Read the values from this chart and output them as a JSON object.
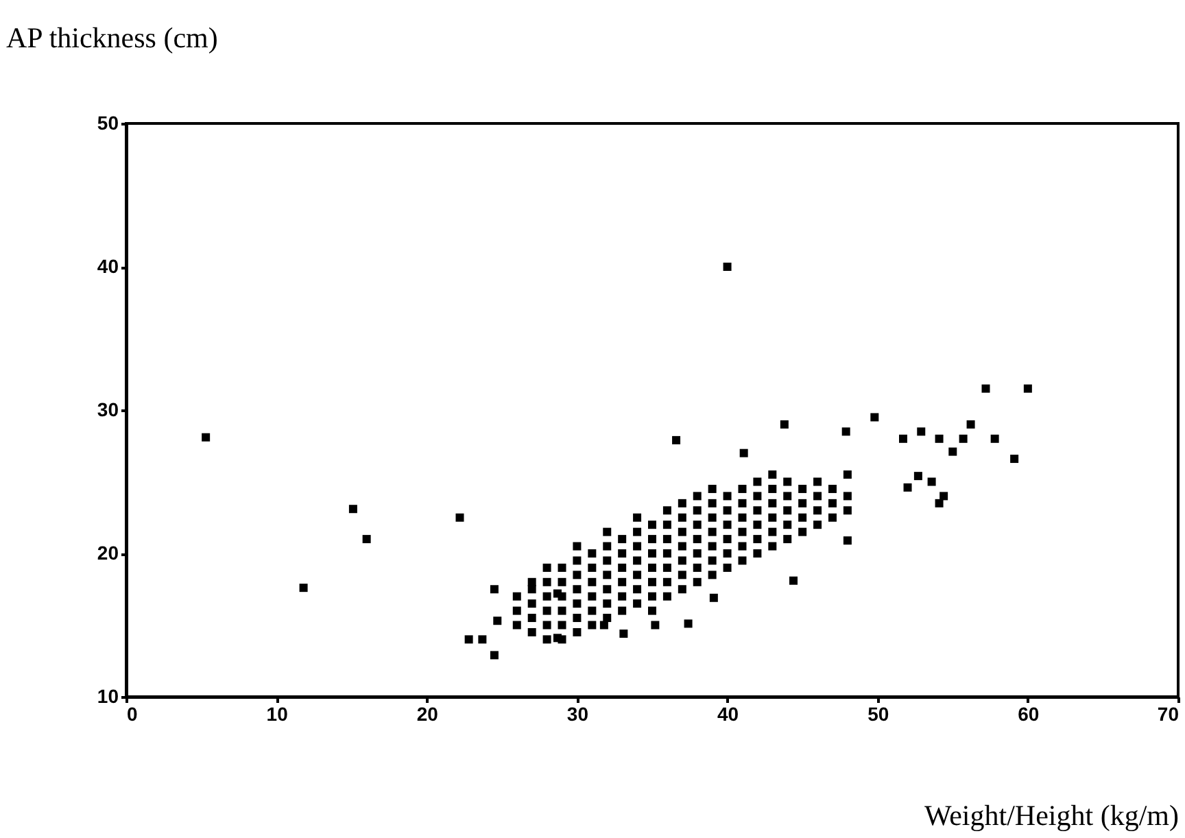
{
  "chart_data": {
    "type": "scatter",
    "xlabel": "Weight/Height (kg/m)",
    "ylabel": "AP thickness (cm)",
    "xlim": [
      0,
      70
    ],
    "ylim": [
      10,
      50
    ],
    "xticks": [
      0,
      10,
      20,
      30,
      40,
      50,
      60,
      70
    ],
    "yticks": [
      10,
      20,
      30,
      40,
      50
    ],
    "marker": "square",
    "color": "#000000",
    "x": [
      5.3,
      11.8,
      15.1,
      16.0,
      22.2,
      24.5,
      22.8,
      23.7,
      24.5,
      40.0,
      57.2,
      60.0,
      49.8,
      59.1,
      57.8,
      56.2,
      55.7,
      55.0,
      54.1,
      52.9,
      51.7,
      47.9,
      43.8,
      54.1,
      54.4,
      53.6,
      52.7,
      52.0,
      44.4,
      39.1,
      48.0,
      41.1,
      36.6,
      28.7,
      35.2,
      37.4,
      33.1,
      31.8,
      28.7,
      24.7,
      26,
      26,
      26,
      27,
      27,
      27,
      27,
      27,
      28,
      28,
      28,
      28,
      28,
      28,
      29,
      29,
      29,
      29,
      29,
      29,
      30,
      30,
      30,
      30,
      30,
      30,
      30,
      31,
      31,
      31,
      31,
      31,
      31,
      32,
      32,
      32,
      32,
      32,
      32,
      32,
      33,
      33,
      33,
      33,
      33,
      33,
      34,
      34,
      34,
      34,
      34,
      34,
      34,
      35,
      35,
      35,
      35,
      35,
      35,
      35,
      36,
      36,
      36,
      36,
      36,
      36,
      36,
      37,
      37,
      37,
      37,
      37,
      37,
      37,
      38,
      38,
      38,
      38,
      38,
      38,
      38,
      39,
      39,
      39,
      39,
      39,
      39,
      39,
      40,
      40,
      40,
      40,
      40,
      40,
      41,
      41,
      41,
      41,
      41,
      41,
      42,
      42,
      42,
      42,
      42,
      42,
      43,
      43,
      43,
      43,
      43,
      43,
      44,
      44,
      44,
      44,
      44,
      45,
      45,
      45,
      45,
      46,
      46,
      46,
      46,
      47,
      47,
      47,
      48,
      48,
      48
    ],
    "values": [
      28.1,
      17.6,
      23.1,
      21.0,
      22.5,
      17.5,
      14.0,
      14.0,
      12.9,
      40.0,
      31.5,
      31.5,
      29.5,
      26.6,
      28.0,
      29.0,
      28.0,
      27.1,
      28.0,
      28.5,
      28.0,
      28.5,
      29.0,
      23.5,
      24.0,
      25.0,
      25.4,
      24.6,
      18.1,
      16.9,
      20.9,
      27.0,
      27.9,
      17.2,
      15.0,
      15.1,
      14.4,
      15.0,
      14.1,
      15.3,
      15,
      16,
      17,
      14.5,
      15.5,
      16.5,
      17.5,
      18,
      14,
      15,
      16,
      17,
      18,
      19,
      14,
      15,
      16,
      17,
      18,
      19,
      14.5,
      15.5,
      16.5,
      17.5,
      18.5,
      19.5,
      20.5,
      15,
      16,
      17,
      18,
      19,
      20,
      15.5,
      16.5,
      17.5,
      18.5,
      19.5,
      20.5,
      21.5,
      16,
      17,
      18,
      19,
      20,
      21,
      16.5,
      17.5,
      18.5,
      19.5,
      20.5,
      21.5,
      22.5,
      16,
      17,
      18,
      19,
      20,
      21,
      22,
      17,
      18,
      19,
      20,
      21,
      22,
      23,
      17.5,
      18.5,
      19.5,
      20.5,
      21.5,
      22.5,
      23.5,
      18,
      19,
      20,
      21,
      22,
      23,
      24,
      18.5,
      19.5,
      20.5,
      21.5,
      22.5,
      23.5,
      24.5,
      19,
      20,
      21,
      22,
      23,
      24,
      19.5,
      20.5,
      21.5,
      22.5,
      23.5,
      24.5,
      20,
      21,
      22,
      23,
      24,
      25,
      20.5,
      21.5,
      22.5,
      23.5,
      24.5,
      25.5,
      21,
      22,
      23,
      24,
      25,
      21.5,
      22.5,
      23.5,
      24.5,
      22,
      23,
      24,
      25,
      22.5,
      23.5,
      24.5,
      23,
      24,
      25.5
    ]
  }
}
